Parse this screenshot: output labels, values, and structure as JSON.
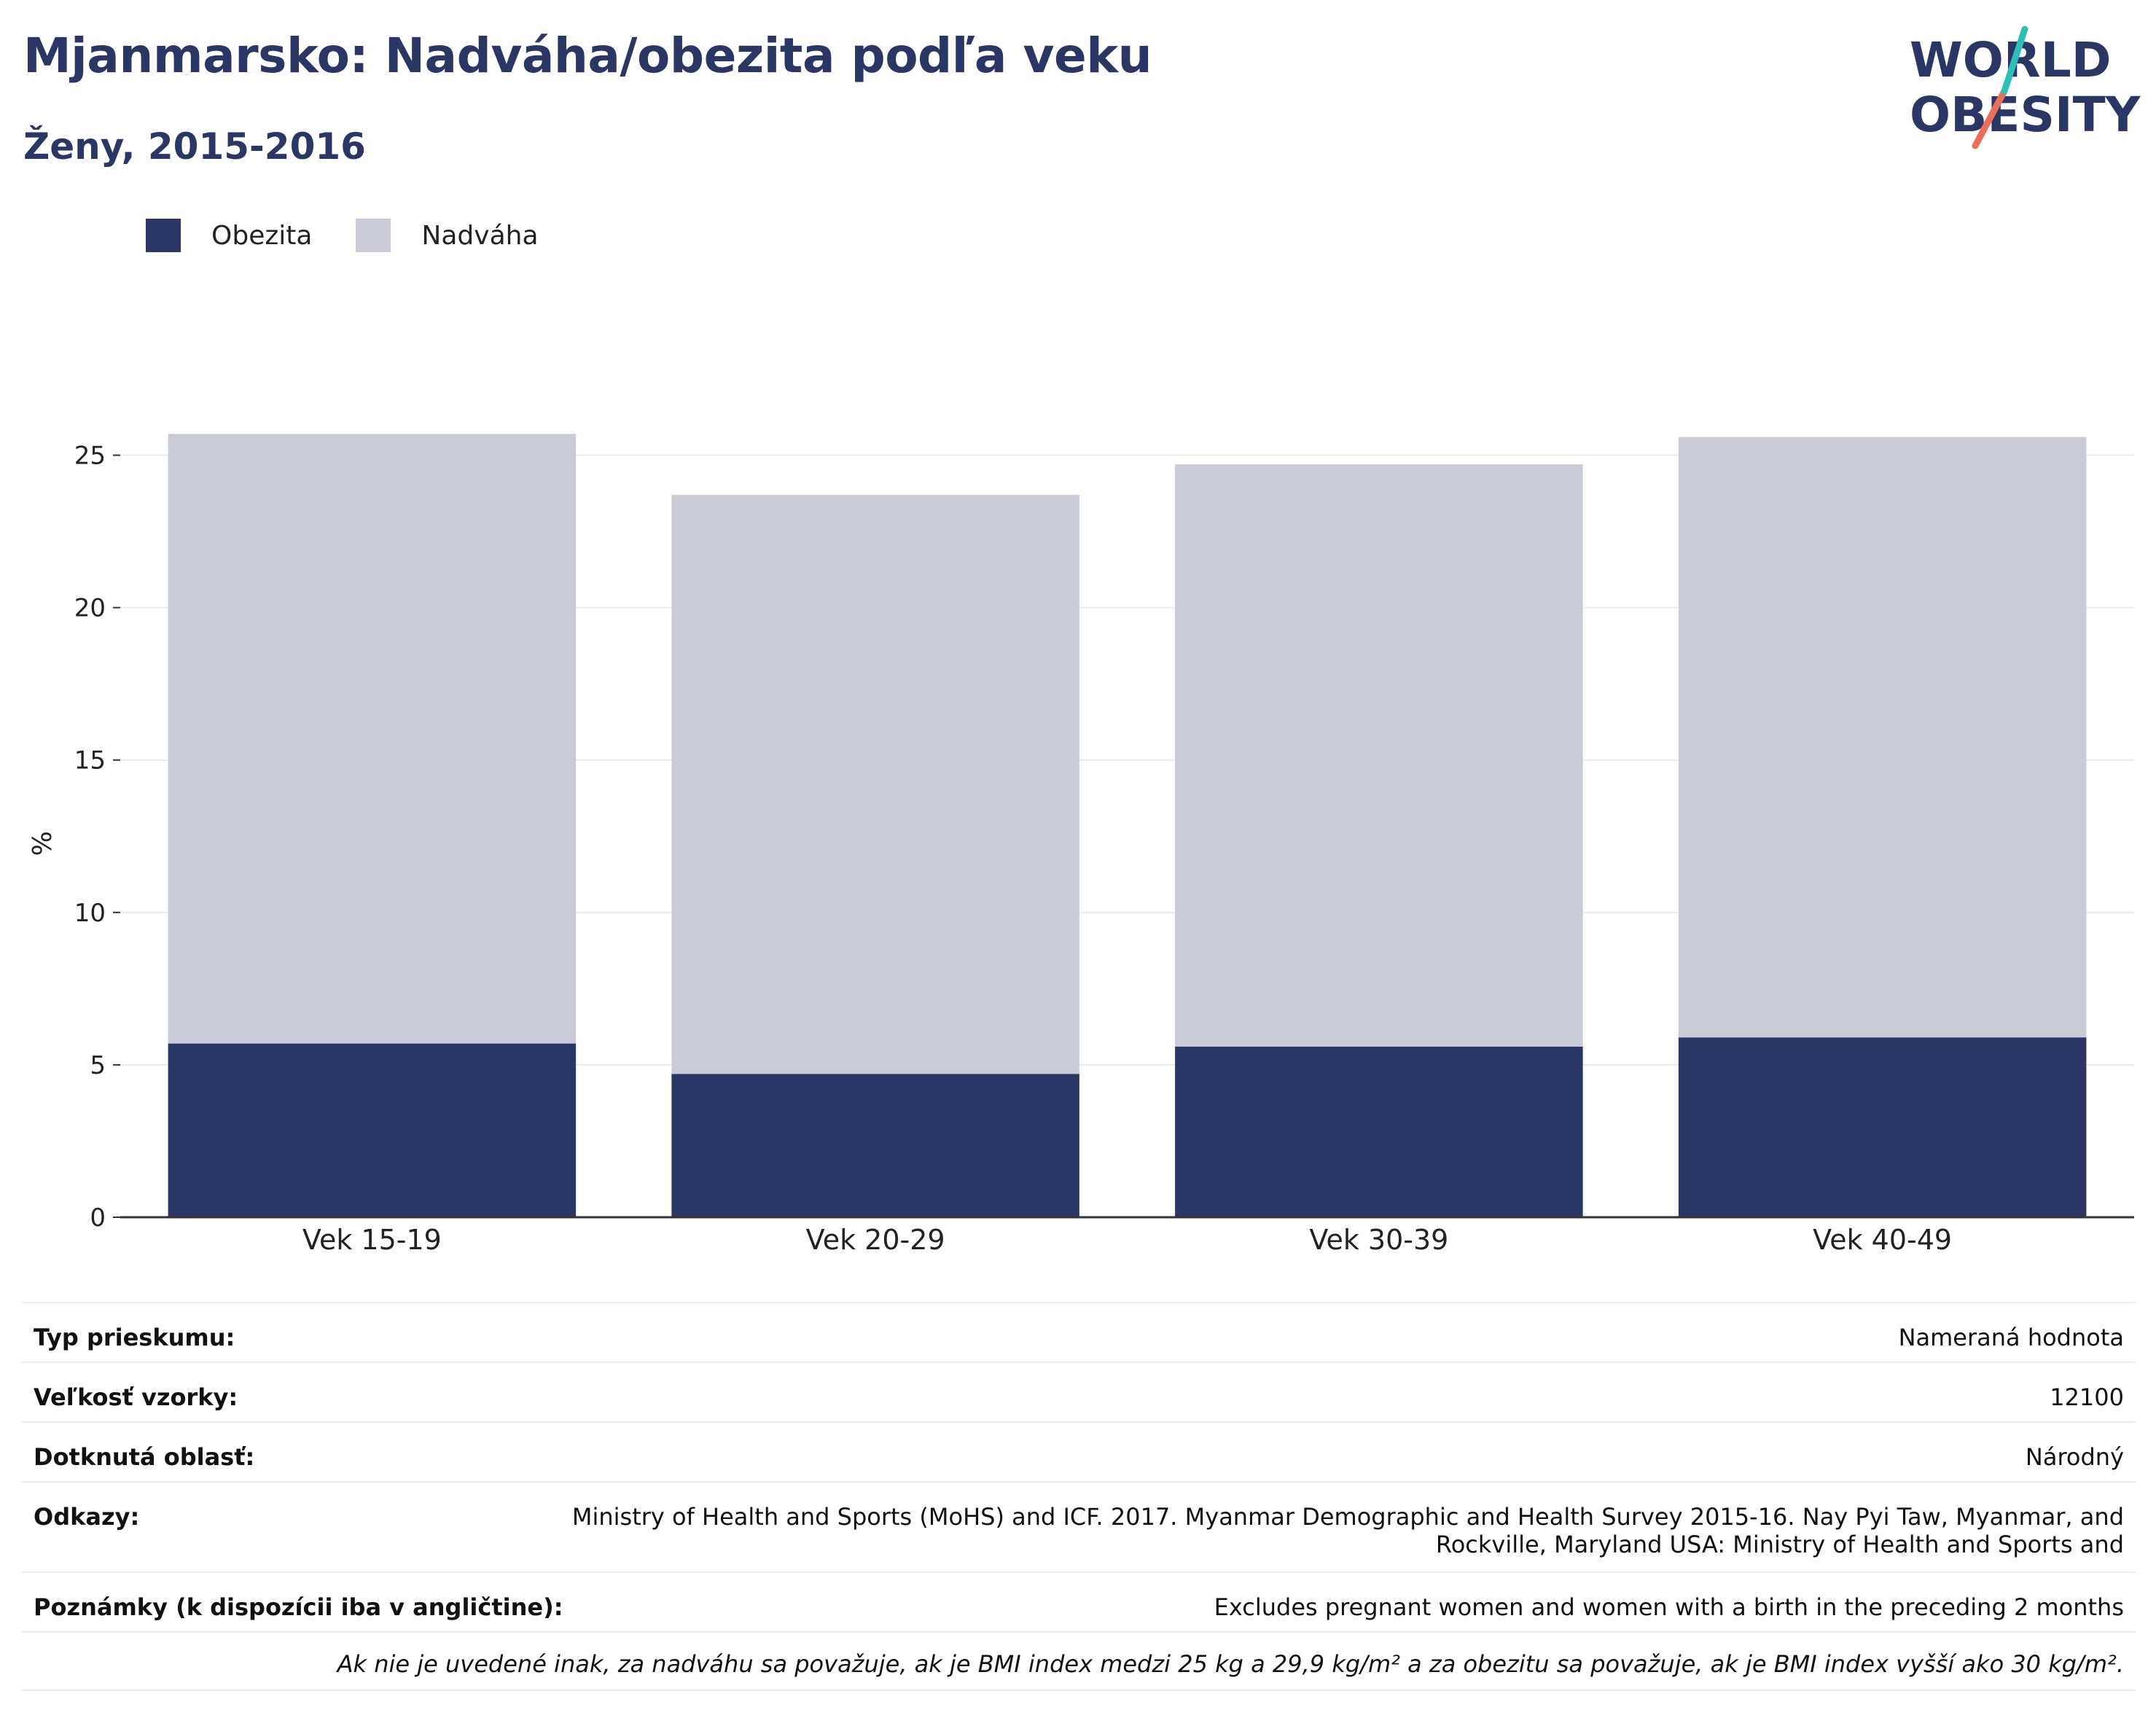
{
  "header": {
    "title": "Mjanmarsko: Nadváha/obezita podľa veku",
    "subtitle": "Ženy, 2015-2016"
  },
  "logo": {
    "line1": "WORLD",
    "line2": "OBESITY"
  },
  "legend": {
    "items": [
      {
        "label": "Obezita",
        "color": "#2a3663"
      },
      {
        "label": "Nadváha",
        "color": "#c9cbd8"
      }
    ]
  },
  "chart_data": {
    "type": "bar",
    "stacked": true,
    "categories": [
      "Vek 15-19",
      "Vek 20-29",
      "Vek 30-39",
      "Vek 40-49"
    ],
    "series": [
      {
        "name": "Obezita",
        "values": [
          5.7,
          4.7,
          5.6,
          5.9
        ],
        "color": "#2a3663"
      },
      {
        "name": "Nadváha",
        "values": [
          20.0,
          19.0,
          19.1,
          19.7
        ],
        "color": "#c9cbd8"
      }
    ],
    "ylabel": "%",
    "ylim": [
      0,
      27.5
    ],
    "yticks": [
      0,
      5,
      10,
      15,
      20,
      25
    ],
    "grid": true
  },
  "info": {
    "rows": [
      {
        "label": "Typ prieskumu:",
        "value": "Nameraná hodnota"
      },
      {
        "label": "Veľkosť vzorky:",
        "value": "12100"
      },
      {
        "label": "Dotknutá oblasť:",
        "value": "Národný"
      },
      {
        "label": "Odkazy:",
        "value_line1": "Ministry of Health and Sports (MoHS) and ICF. 2017. Myanmar Demographic and Health Survey 2015-16. Nay Pyi Taw, Myanmar, and",
        "value_line2": "Rockville, Maryland USA: Ministry of Health and Sports and"
      },
      {
        "label": "Poznámky (k dispozícii iba v angličtine):",
        "value": "Excludes pregnant women and women with a birth in the preceding 2 months"
      }
    ],
    "footnote": "Ak nie je uvedené inak, za nadváhu sa považuje, ak je BMI index medzi 25 kg a 29,9 kg/m² a za obezitu sa považuje, ak je BMI index vyšší ako 30 kg/m²."
  }
}
